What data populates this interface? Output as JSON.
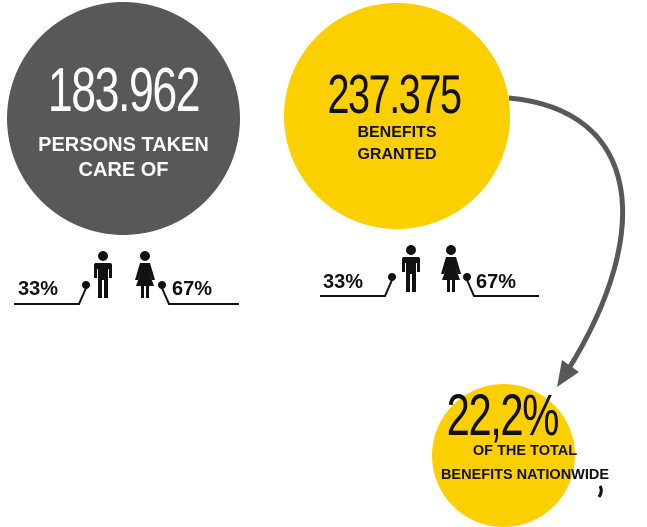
{
  "persons": {
    "number": "183.962",
    "label_line1": "PERSONS TAKEN",
    "label_line2": "CARE OF",
    "male_pct": "33%",
    "female_pct": "67%",
    "color": "#58585a"
  },
  "benefits": {
    "number": "237.375",
    "label_line1": "BENEFITS",
    "label_line2": "GRANTED",
    "male_pct": "33%",
    "female_pct": "67%",
    "color": "#fcd000"
  },
  "total": {
    "number": "22,2%",
    "label_line1": "OF THE TOTAL",
    "label_line2": "BENEFITS NATIONWIDE",
    "color": "#fcd000"
  },
  "icons": [
    "male-person-icon",
    "female-person-icon",
    "curved-arrow-icon"
  ]
}
